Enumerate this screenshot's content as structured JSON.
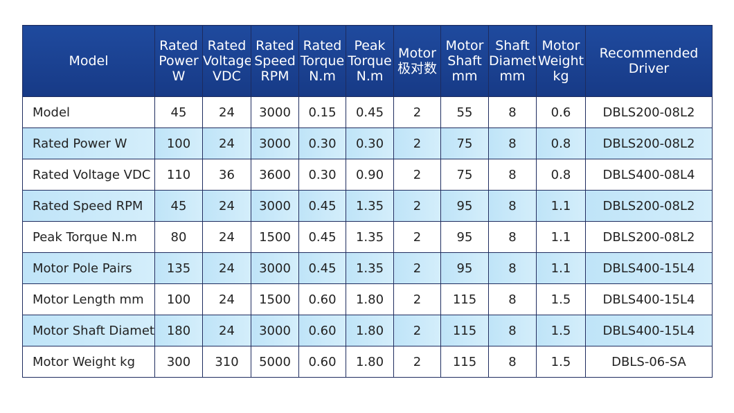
{
  "table": {
    "header": [
      [
        "Model"
      ],
      [
        "Rated",
        "Power",
        "W"
      ],
      [
        "Rated",
        "Voltage",
        "VDC"
      ],
      [
        "Rated",
        "Speed",
        "RPM"
      ],
      [
        "Rated",
        "Torque",
        "N.m"
      ],
      [
        "Peak",
        "Torque",
        "N.m"
      ],
      [
        "Motor",
        "极对数"
      ],
      [
        "Motor",
        "Shaft",
        "mm"
      ],
      [
        "Shaft",
        "Diameter",
        "mm"
      ],
      [
        "Motor",
        "Weight",
        "kg"
      ],
      [
        "Recommended",
        "Driver"
      ]
    ],
    "rows": [
      [
        "Model",
        "45",
        "24",
        "3000",
        "0.15",
        "0.45",
        "2",
        "55",
        "8",
        "0.6",
        "DBLS200-08L2"
      ],
      [
        "Rated Power W",
        "100",
        "24",
        "3000",
        "0.30",
        "0.30",
        "2",
        "75",
        "8",
        "0.8",
        "DBLS200-08L2"
      ],
      [
        "Rated Voltage VDC",
        "110",
        "36",
        "3600",
        "0.30",
        "0.90",
        "2",
        "75",
        "8",
        "0.8",
        "DBLS400-08L4"
      ],
      [
        "Rated Speed RPM",
        "45",
        "24",
        "3000",
        "0.45",
        "1.35",
        "2",
        "95",
        "8",
        "1.1",
        "DBLS200-08L2"
      ],
      [
        "Peak Torque N.m",
        "80",
        "24",
        "1500",
        "0.45",
        "1.35",
        "2",
        "95",
        "8",
        "1.1",
        "DBLS200-08L2"
      ],
      [
        "Motor Pole Pairs",
        "135",
        "24",
        "3000",
        "0.45",
        "1.35",
        "2",
        "95",
        "8",
        "1.1",
        "DBLS400-15L4"
      ],
      [
        "Motor Length mm",
        "100",
        "24",
        "1500",
        "0.60",
        "1.80",
        "2",
        "115",
        "8",
        "1.5",
        "DBLS400-15L4"
      ],
      [
        "Motor Shaft Diamete",
        "180",
        "24",
        "3000",
        "0.60",
        "1.80",
        "2",
        "115",
        "8",
        "1.5",
        "DBLS400-15L4"
      ],
      [
        "Motor Weight kg",
        "300",
        "310",
        "5000",
        "0.60",
        "1.80",
        "2",
        "115",
        "8",
        "1.5",
        "DBLS-06-SA"
      ]
    ]
  }
}
